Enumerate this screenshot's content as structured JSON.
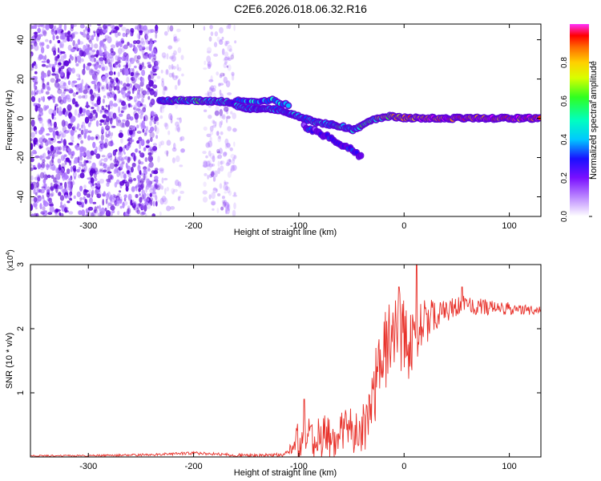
{
  "title": "C2E6.2026.018.06.32.R16",
  "colors": {
    "snr_line": "#e8312a",
    "ridge": "#5a00d8",
    "background": "#ffffff",
    "colormap": [
      "#ffffff",
      "#d6b4ff",
      "#9a4dff",
      "#6a00f0",
      "#2a00ff",
      "#0050ff",
      "#00b4ff",
      "#00ffd0",
      "#30ff30",
      "#c8ff00",
      "#ffe800",
      "#ff9a00",
      "#ff3300",
      "#ff00ff"
    ]
  },
  "chart_data": [
    {
      "type": "heatmap",
      "name": "spectrogram",
      "xlabel": "Height of straight line (km)",
      "ylabel": "Frequency (Hz)",
      "xlim": [
        -355,
        130
      ],
      "ylim": [
        -50,
        48
      ],
      "xticks": [
        -300,
        -200,
        -100,
        0,
        100
      ],
      "yticks": [
        -40,
        -20,
        0,
        20,
        40
      ],
      "colorbar": {
        "label": "Normalized spectral amplitude",
        "range": [
          0,
          1
        ],
        "ticks": [
          "0.0",
          "0.2",
          "0.4",
          "0.6",
          "0.8"
        ]
      },
      "noise_region": {
        "x": [
          -355,
          -235
        ],
        "amplitude": 0.1
      },
      "ridge": [
        {
          "x": -232,
          "f": 9,
          "amp": 0.45
        },
        {
          "x": -200,
          "f": 9,
          "amp": 0.55
        },
        {
          "x": -170,
          "f": 8.5,
          "amp": 0.45
        },
        {
          "x": -150,
          "f": 5,
          "amp": 0.4
        },
        {
          "x": -120,
          "f": 4.5,
          "amp": 0.45
        },
        {
          "x": -100,
          "f": 1,
          "amp": 0.4
        },
        {
          "x": -85,
          "f": -2,
          "amp": 0.45
        },
        {
          "x": -60,
          "f": -4,
          "amp": 0.5
        },
        {
          "x": -48,
          "f": -6,
          "amp": 0.45
        },
        {
          "x": -30,
          "f": -1,
          "amp": 0.55
        },
        {
          "x": -15,
          "f": 1,
          "amp": 0.7
        },
        {
          "x": 0,
          "f": 0.3,
          "amp": 0.8
        },
        {
          "x": 20,
          "f": 0,
          "amp": 0.9
        },
        {
          "x": 130,
          "f": 0,
          "amp": 0.9
        }
      ],
      "secondary_ridge": [
        {
          "x": -160,
          "f": 9,
          "amp": 0.4
        },
        {
          "x": -125,
          "f": 9,
          "amp": 0.45
        },
        {
          "x": -110,
          "f": 7,
          "amp": 0.4
        }
      ],
      "lower_branch": [
        {
          "x": -95,
          "f": -4,
          "amp": 0.3
        },
        {
          "x": -70,
          "f": -10,
          "amp": 0.3
        },
        {
          "x": -50,
          "f": -16,
          "amp": 0.3
        },
        {
          "x": -40,
          "f": -20,
          "amp": 0.25
        }
      ]
    },
    {
      "type": "line",
      "name": "snr",
      "xlabel": "Height of straight line (km)",
      "ylabel": "SNR (10 * v/v)",
      "y_multiplier": "(x10",
      "y_multiplier_exp": "4",
      "y_multiplier_close": ")",
      "xlim": [
        -355,
        130
      ],
      "ylim": [
        0,
        3
      ],
      "xticks": [
        -300,
        -200,
        -100,
        0,
        100
      ],
      "yticks": [
        1,
        2,
        3
      ],
      "series": [
        {
          "name": "SNR",
          "points": [
            [
              -355,
              0.02
            ],
            [
              -300,
              0.02
            ],
            [
              -250,
              0.03
            ],
            [
              -200,
              0.06
            ],
            [
              -150,
              0.02
            ],
            [
              -115,
              0.03
            ],
            [
              -105,
              0.15
            ],
            [
              -95,
              0.45
            ],
            [
              -85,
              0.25
            ],
            [
              -75,
              0.35
            ],
            [
              -65,
              0.25
            ],
            [
              -55,
              0.5
            ],
            [
              -45,
              0.35
            ],
            [
              -35,
              0.55
            ],
            [
              -25,
              1.3
            ],
            [
              -15,
              1.85
            ],
            [
              -5,
              1.9
            ],
            [
              5,
              1.75
            ],
            [
              15,
              2.05
            ],
            [
              25,
              2.15
            ],
            [
              35,
              2.25
            ],
            [
              45,
              2.3
            ],
            [
              55,
              2.4
            ],
            [
              70,
              2.35
            ],
            [
              90,
              2.33
            ],
            [
              110,
              2.3
            ],
            [
              130,
              2.28
            ]
          ],
          "noise_spread": [
            [
              -355,
              0.01
            ],
            [
              -110,
              0.03
            ],
            [
              -100,
              0.35
            ],
            [
              -60,
              0.3
            ],
            [
              -40,
              0.35
            ],
            [
              -20,
              0.7
            ],
            [
              0,
              0.65
            ],
            [
              20,
              0.35
            ],
            [
              40,
              0.18
            ],
            [
              60,
              0.15
            ],
            [
              130,
              0.06
            ]
          ],
          "spikes": [
            [
              -5,
              2.65
            ],
            [
              12,
              3.0
            ],
            [
              -95,
              0.9
            ],
            [
              55,
              2.65
            ]
          ]
        }
      ]
    }
  ]
}
